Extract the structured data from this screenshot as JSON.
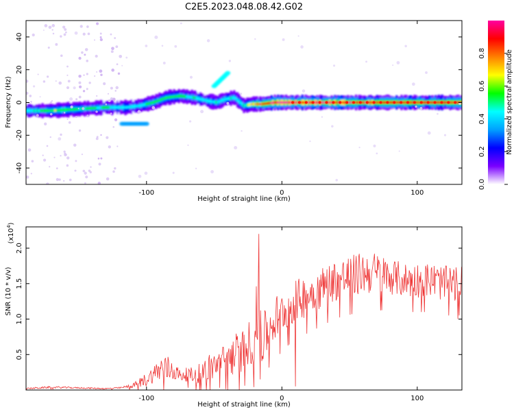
{
  "title": "C2E5.2023.048.08.42.G02",
  "chart_data": [
    {
      "type": "heatmap",
      "title": "",
      "xlabel": "Height of straight line (km)",
      "ylabel": "Frequency (Hz)",
      "xlim": [
        -189,
        133
      ],
      "ylim": [
        -50,
        50
      ],
      "xticks": [
        -100,
        0,
        100
      ],
      "yticks": [
        -40,
        -20,
        0,
        20,
        40
      ],
      "colorbar": {
        "label": "Normalized spectral amplitude",
        "range": [
          0.0,
          1.0
        ],
        "ticks": [
          "0.0",
          "0.2",
          "0.4",
          "0.6",
          "0.8"
        ],
        "colors": [
          "#ffffff",
          "#7a00ff",
          "#0000ff",
          "#00a0ff",
          "#00ffff",
          "#00ff00",
          "#ffff00",
          "#ff8000",
          "#ff0000",
          "#ff00a0"
        ]
      },
      "trace": {
        "description": "dominant spectral band vs height",
        "x": [
          -189,
          -170,
          -150,
          -130,
          -115,
          -105,
          -95,
          -85,
          -75,
          -65,
          -55,
          -48,
          -42,
          -35,
          -28,
          -22,
          -15,
          -5,
          0,
          10,
          40,
          80,
          133
        ],
        "y": [
          -5,
          -5,
          -4,
          -3,
          -3,
          -2,
          0,
          3,
          4,
          3,
          1,
          0,
          2,
          3,
          -2,
          -1,
          -1,
          0,
          0,
          0,
          0,
          0,
          0
        ],
        "amplitude": [
          0.4,
          0.55,
          0.5,
          0.45,
          0.4,
          0.4,
          0.5,
          0.55,
          0.5,
          0.45,
          0.4,
          0.45,
          0.4,
          0.45,
          0.45,
          0.7,
          0.8,
          0.9,
          0.95,
          0.9,
          0.9,
          0.85,
          0.85
        ]
      },
      "features": [
        {
          "x": [
            -50,
            -40
          ],
          "y": [
            10,
            18
          ],
          "amplitude": 0.4
        },
        {
          "x": [
            -118,
            -100
          ],
          "y": [
            -13,
            -13
          ],
          "amplitude": 0.3
        },
        {
          "x": [
            -145,
            -125
          ],
          "y": [
            -50,
            50
          ],
          "amplitude": 0.1
        }
      ]
    },
    {
      "type": "line",
      "title": "",
      "xlabel": "Height of straight line (km)",
      "ylabel": "SNR (10 * v/v)",
      "y_multiplier": "(x10^4)",
      "xlim": [
        -189,
        133
      ],
      "ylim": [
        0,
        2.3
      ],
      "xticks": [
        -100,
        0,
        100
      ],
      "yticks": [
        0.5,
        1.0,
        1.5,
        2.0
      ],
      "ytick_labels": [
        "0.5",
        "1.0",
        "1.5",
        "2.0"
      ],
      "series": [
        {
          "name": "SNR",
          "color": "#ee3333",
          "x": [
            -189,
            -170,
            -150,
            -130,
            -120,
            -110,
            -100,
            -95,
            -90,
            -85,
            -80,
            -75,
            -70,
            -65,
            -60,
            -55,
            -50,
            -45,
            -40,
            -35,
            -30,
            -25,
            -20,
            -17,
            -15,
            -10,
            -5,
            0,
            10,
            20,
            30,
            40,
            50,
            60,
            70,
            80,
            90,
            100,
            110,
            120,
            128,
            133
          ],
          "y": [
            0.02,
            0.04,
            0.03,
            0.02,
            0.03,
            0.06,
            0.15,
            0.22,
            0.3,
            0.3,
            0.28,
            0.2,
            0.22,
            0.2,
            0.25,
            0.3,
            0.35,
            0.4,
            0.45,
            0.5,
            0.55,
            0.65,
            0.75,
            1.3,
            0.7,
            0.85,
            1.0,
            1.1,
            1.25,
            1.35,
            1.45,
            1.55,
            1.6,
            1.65,
            1.65,
            1.6,
            1.55,
            1.55,
            1.55,
            1.5,
            1.5,
            1.5
          ],
          "noise": [
            0.01,
            0.015,
            0.01,
            0.01,
            0.01,
            0.03,
            0.1,
            0.12,
            0.18,
            0.2,
            0.15,
            0.08,
            0.1,
            0.12,
            0.15,
            0.2,
            0.2,
            0.2,
            0.25,
            0.3,
            0.3,
            0.3,
            0.4,
            0.7,
            0.4,
            0.3,
            0.35,
            0.3,
            0.3,
            0.3,
            0.3,
            0.3,
            0.3,
            0.3,
            0.3,
            0.25,
            0.25,
            0.25,
            0.25,
            0.25,
            0.25,
            0.25
          ]
        }
      ]
    }
  ]
}
